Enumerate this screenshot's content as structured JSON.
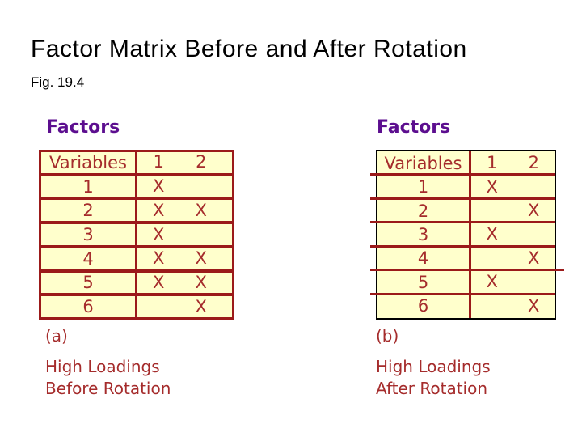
{
  "slide": {
    "title": "Factor Matrix Before and After Rotation",
    "fig_label": "Fig. 19.4"
  },
  "colors": {
    "red": "#9b1a1a",
    "text-red": "#a52c2c",
    "purple": "#5c0e8f",
    "cream": "#ffffcc",
    "black": "#000000"
  },
  "panels": [
    {
      "heading": "Factors",
      "table": {
        "header": {
          "variables": "Variables",
          "factor1": "1",
          "factor2": "2"
        },
        "rows": [
          {
            "variable": "1",
            "f1": "X",
            "f2": ""
          },
          {
            "variable": "2",
            "f1": "X",
            "f2": "X"
          },
          {
            "variable": "3",
            "f1": "X",
            "f2": ""
          },
          {
            "variable": "4",
            "f1": "X",
            "f2": "X"
          },
          {
            "variable": "5",
            "f1": "X",
            "f2": "X"
          },
          {
            "variable": "6",
            "f1": "",
            "f2": "X"
          }
        ]
      },
      "label": "(a)",
      "caption": [
        "High Loadings",
        "Before Rotation"
      ]
    },
    {
      "heading": "Factors",
      "table": {
        "header": {
          "variables": "Variables",
          "factor1": "1",
          "factor2": "2"
        },
        "rows": [
          {
            "variable": "1",
            "f1": "X",
            "f2": ""
          },
          {
            "variable": "2",
            "f1": "",
            "f2": "X"
          },
          {
            "variable": "3",
            "f1": "X",
            "f2": ""
          },
          {
            "variable": "4",
            "f1": "",
            "f2": "X"
          },
          {
            "variable": "5",
            "f1": "X",
            "f2": ""
          },
          {
            "variable": "6",
            "f1": "",
            "f2": "X"
          }
        ]
      },
      "label": "(b)",
      "caption": [
        "High Loadings",
        "After Rotation"
      ]
    }
  ]
}
